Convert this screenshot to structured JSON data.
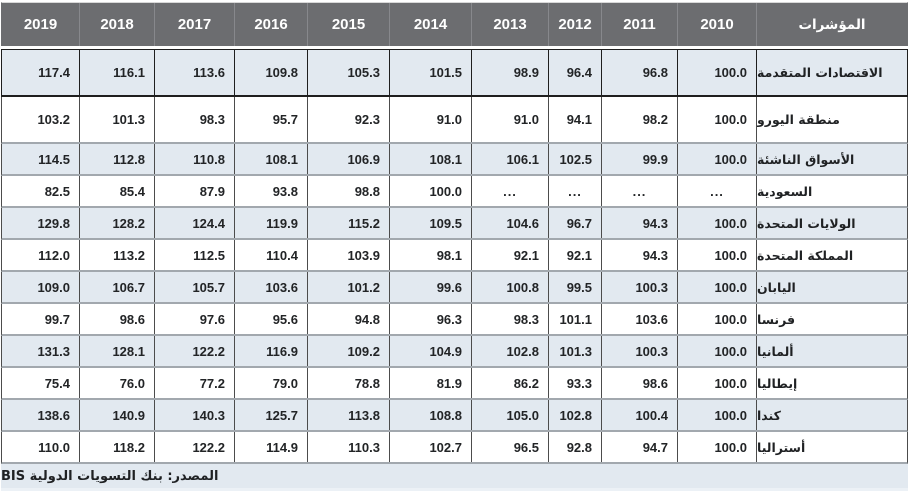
{
  "colors": {
    "header_bg": "#6c6d70",
    "header_text": "#ffffff",
    "shaded_row_bg": "#e2e9f0",
    "white_row_bg": "#ffffff",
    "row_separator": "#a2a8ae",
    "cell_border": "#4c4c4c",
    "first_row_border": "#1e1e1e"
  },
  "table": {
    "header": {
      "year_columns": [
        "2019",
        "2018",
        "2017",
        "2016",
        "2015",
        "2014",
        "2013",
        "2012",
        "2011",
        "2010"
      ],
      "label_column": "المؤشرات"
    },
    "rows": [
      {
        "label": "الاقتصادات المتقدمة",
        "values": [
          "117.4",
          "116.1",
          "113.6",
          "109.8",
          "105.3",
          "101.5",
          "98.9",
          "96.4",
          "96.8",
          "100.0"
        ]
      },
      {
        "label": "منطقة اليورو",
        "values": [
          "103.2",
          "101.3",
          "98.3",
          "95.7",
          "92.3",
          "91.0",
          "91.0",
          "94.1",
          "98.2",
          "100.0"
        ]
      },
      {
        "label": "الأسواق الناشئة",
        "values": [
          "114.5",
          "112.8",
          "110.8",
          "108.1",
          "106.9",
          "108.1",
          "106.1",
          "102.5",
          "99.9",
          "100.0"
        ]
      },
      {
        "label": "السعودية",
        "values": [
          "82.5",
          "85.4",
          "87.9",
          "93.8",
          "98.8",
          "100.0",
          "...",
          "...",
          "...",
          "..."
        ]
      },
      {
        "label": "الولايات المتحدة",
        "values": [
          "129.8",
          "128.2",
          "124.4",
          "119.9",
          "115.2",
          "109.5",
          "104.6",
          "96.7",
          "94.3",
          "100.0"
        ]
      },
      {
        "label": "المملكة المتحدة",
        "values": [
          "112.0",
          "113.2",
          "112.5",
          "110.4",
          "103.9",
          "98.1",
          "92.1",
          "92.1",
          "94.3",
          "100.0"
        ]
      },
      {
        "label": "اليابان",
        "values": [
          "109.0",
          "106.7",
          "105.7",
          "103.6",
          "101.2",
          "99.6",
          "100.8",
          "99.5",
          "100.3",
          "100.0"
        ]
      },
      {
        "label": "فرنسا",
        "values": [
          "99.7",
          "98.6",
          "97.6",
          "95.6",
          "94.8",
          "96.3",
          "98.3",
          "101.1",
          "103.6",
          "100.0"
        ]
      },
      {
        "label": "ألمانيا",
        "values": [
          "131.3",
          "128.1",
          "122.2",
          "116.9",
          "109.2",
          "104.9",
          "102.8",
          "101.3",
          "100.3",
          "100.0"
        ]
      },
      {
        "label": "إيطاليا",
        "values": [
          "75.4",
          "76.0",
          "77.2",
          "79.0",
          "78.8",
          "81.9",
          "86.2",
          "93.3",
          "98.6",
          "100.0"
        ]
      },
      {
        "label": "كندا",
        "values": [
          "138.6",
          "140.9",
          "140.3",
          "125.7",
          "113.8",
          "108.8",
          "105.0",
          "102.8",
          "100.4",
          "100.0"
        ]
      },
      {
        "label": "أستراليا",
        "values": [
          "110.0",
          "118.2",
          "122.2",
          "114.9",
          "110.3",
          "102.7",
          "96.5",
          "92.8",
          "94.7",
          "100.0"
        ]
      }
    ],
    "footer": {
      "source": "المصدر: بنك التسويات الدولية BIS"
    }
  }
}
